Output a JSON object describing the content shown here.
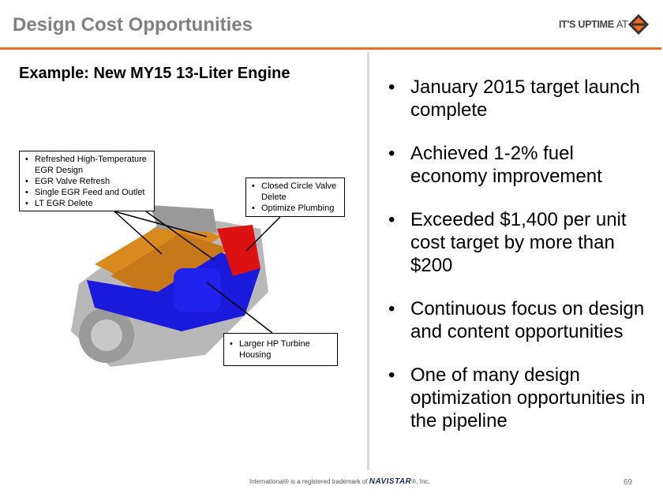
{
  "header": {
    "title": "Design Cost Opportunities",
    "brand_text": "IT'S UPTIME",
    "brand_at": "AT",
    "logo_icon": "international-diamond-logo",
    "accent": "#f26b1d"
  },
  "left": {
    "subtitle": "Example:  New  MY15 13-Liter Engine",
    "callouts": [
      {
        "items": [
          "Refreshed High-Temperature EGR Design",
          "EGR Valve Refresh",
          "Single EGR Feed and Outlet",
          "LT EGR Delete"
        ]
      },
      {
        "items": [
          "Closed Circle Valve Delete",
          "Optimize Plumbing"
        ]
      },
      {
        "items": [
          "Larger HP Turbine Housing"
        ]
      }
    ]
  },
  "right": {
    "bullets": [
      "January 2015 target launch complete",
      "Achieved 1-2% fuel economy improvement",
      "Exceeded $1,400 per unit cost target by more than $200",
      "Continuous focus on design and content opportunities",
      "One of many design optimization opportunities in the pipeline"
    ]
  },
  "footer": {
    "pre": "International® is a registered trademark of",
    "brand": "NAVISTAR",
    "post": "®, Inc.",
    "page": "69"
  }
}
